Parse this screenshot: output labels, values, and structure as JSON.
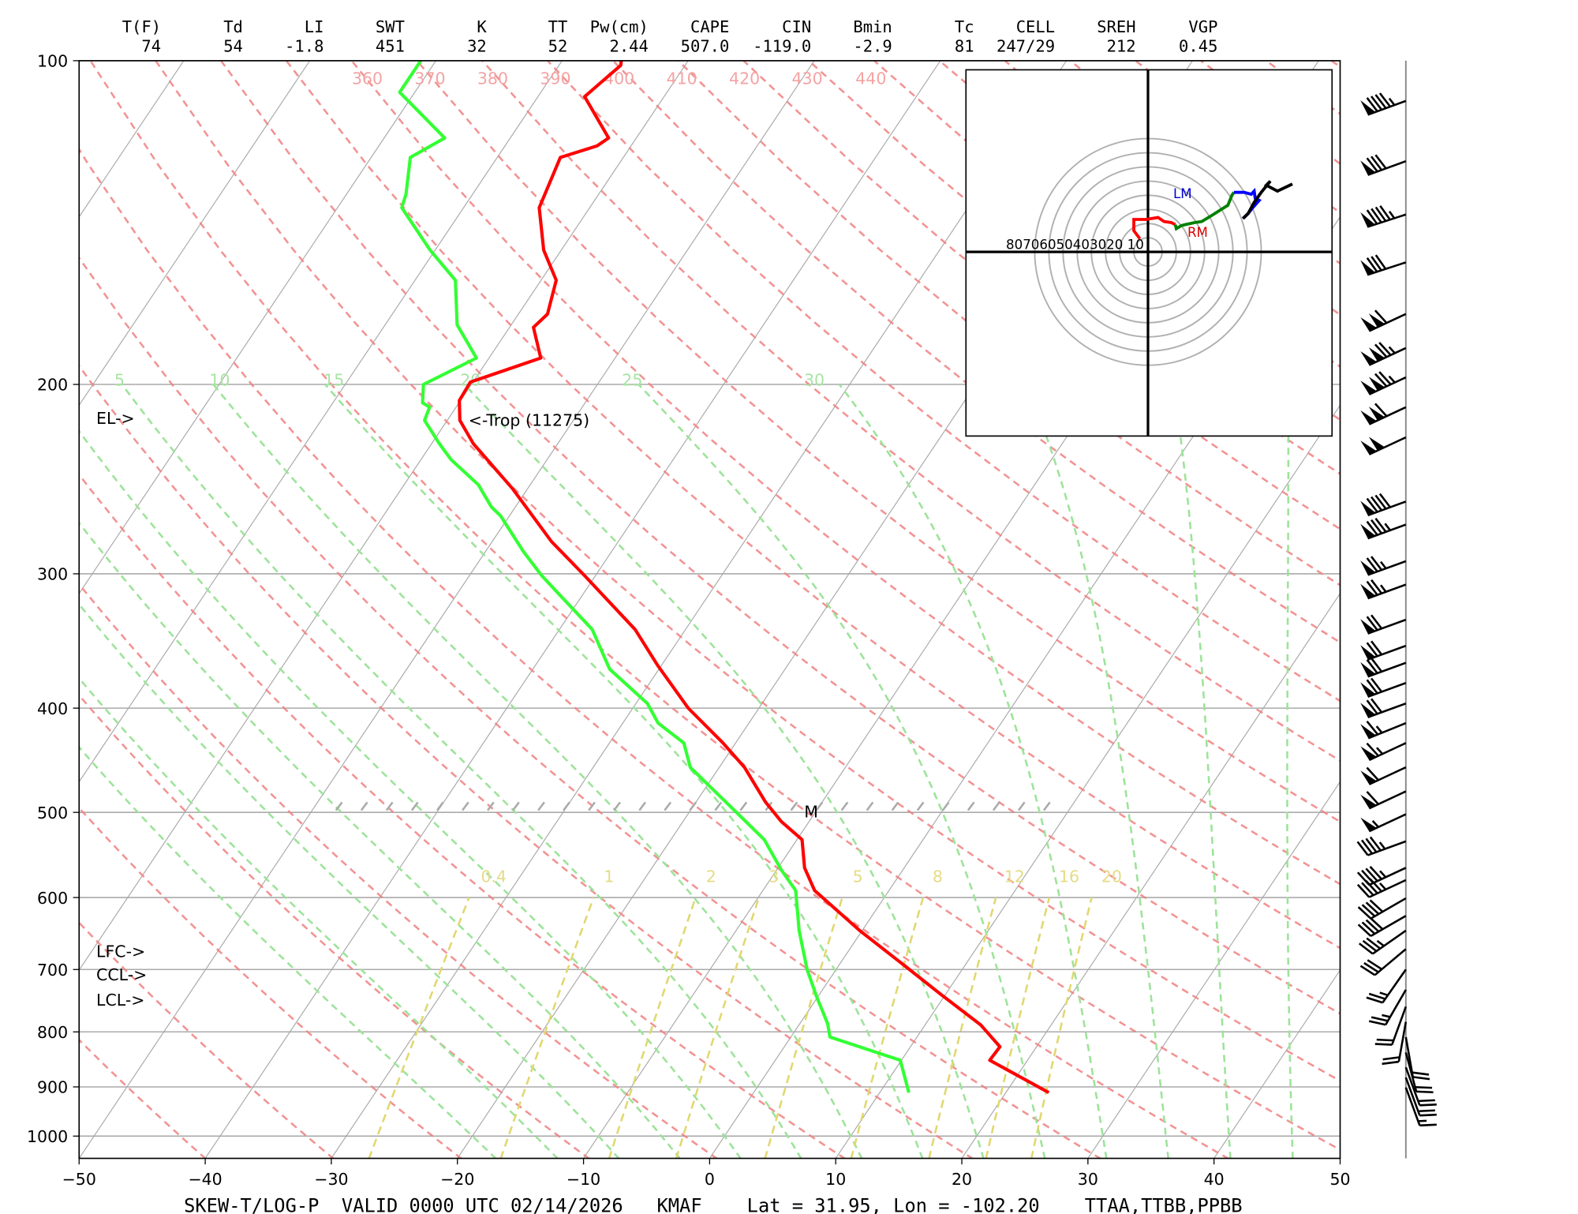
{
  "header": {
    "columns": [
      {
        "label": "T(F)",
        "value": "74"
      },
      {
        "label": "Td",
        "value": "54"
      },
      {
        "label": "LI",
        "value": "-1.8"
      },
      {
        "label": "SWT",
        "value": "451"
      },
      {
        "label": "K",
        "value": "32"
      },
      {
        "label": "TT",
        "value": "52"
      },
      {
        "label": "Pw(cm)",
        "value": "2.44"
      },
      {
        "label": "CAPE",
        "value": "507.0"
      },
      {
        "label": "CIN",
        "value": "-119.0"
      },
      {
        "label": "Bmin",
        "value": "-2.9"
      },
      {
        "label": "Tc",
        "value": "81"
      },
      {
        "label": "CELL",
        "value": "247/29"
      },
      {
        "label": "SREH",
        "value": "212"
      },
      {
        "label": "VGP",
        "value": "0.45"
      }
    ]
  },
  "footer": {
    "title": "SKEW-T/LOG-P  VALID 0000 UTC 02/14/2026   KMAF    Lat = 31.95, Lon = -102.20    TTAA,TTBB,PPBB"
  },
  "annotations": {
    "el": "EL->",
    "trop": "<-Trop (11275)",
    "lfc": "LFC->",
    "ccl": "CCL->",
    "lcl": "LCL->",
    "m": "M"
  },
  "chart_data": {
    "type": "line",
    "subtype": "skew-t log-p",
    "xlabel": "Temperature (C)",
    "ylabel": "Pressure (mb)",
    "xlim": [
      -50,
      50
    ],
    "ylim": [
      1050,
      100
    ],
    "x_ticks": [
      "−50",
      "−40",
      "−30",
      "−20",
      "−10",
      "0",
      "10",
      "20",
      "30",
      "40",
      "50"
    ],
    "x_tick_values": [
      -50,
      -40,
      -30,
      -20,
      -10,
      0,
      10,
      20,
      30,
      40,
      50
    ],
    "y_ticks": [
      "100",
      "200",
      "300",
      "400",
      "500",
      "600",
      "700",
      "800",
      "900",
      "1000"
    ],
    "y_tick_values": [
      100,
      200,
      300,
      400,
      500,
      600,
      700,
      800,
      900,
      1000
    ],
    "dry_adiabat_labels": [
      "360",
      "370",
      "380",
      "390",
      "400",
      "410",
      "420",
      "430",
      "440"
    ],
    "moist_adiabat_labels": [
      "5",
      "10",
      "15",
      "20",
      "25",
      "30"
    ],
    "mixing_ratio_labels": [
      "0.4",
      "1",
      "2",
      "3",
      "5",
      "8",
      "12",
      "16",
      "20"
    ],
    "mixing_ratio_values": [
      0.4,
      1,
      2,
      3,
      5,
      8,
      12,
      16,
      20
    ],
    "colors": {
      "temperature": "#ff0000",
      "dewpoint": "#33ff33",
      "dry_adiabat": "#f08080",
      "moist_adiabat": "#9de39a",
      "mixing_ratio": "#e0d870",
      "isotherm": "#a8a8a8"
    },
    "series": [
      {
        "name": "Temperature",
        "points": [
          [
            911,
            23.4
          ],
          [
            850,
            17.0
          ],
          [
            826,
            17.1
          ],
          [
            788,
            14.4
          ],
          [
            738,
            9.6
          ],
          [
            695,
            5.3
          ],
          [
            644,
            -0.2
          ],
          [
            591,
            -5.9
          ],
          [
            563,
            -7.9
          ],
          [
            530,
            -9.6
          ],
          [
            510,
            -12.2
          ],
          [
            489,
            -14.5
          ],
          [
            454,
            -18.0
          ],
          [
            431,
            -21.0
          ],
          [
            400,
            -25.6
          ],
          [
            365,
            -30.3
          ],
          [
            338,
            -34.0
          ],
          [
            301,
            -40.9
          ],
          [
            280,
            -45.3
          ],
          [
            250,
            -51.2
          ],
          [
            227,
            -56.7
          ],
          [
            216,
            -59.0
          ],
          [
            207,
            -60.1
          ],
          [
            199,
            -60.2
          ],
          [
            189,
            -55.9
          ],
          [
            177,
            -58.1
          ],
          [
            172,
            -57.7
          ],
          [
            160,
            -58.8
          ],
          [
            150,
            -61.4
          ],
          [
            137,
            -64.0
          ],
          [
            123,
            -65.0
          ],
          [
            120,
            -62.7
          ],
          [
            118,
            -62.2
          ],
          [
            108,
            -66.3
          ],
          [
            101,
            -65.1
          ],
          [
            100,
            -65.3
          ]
        ]
      },
      {
        "name": "Dewpoint",
        "points": [
          [
            911,
            12.3
          ],
          [
            850,
            9.9
          ],
          [
            809,
            3.1
          ],
          [
            786,
            2.2
          ],
          [
            742,
            -0.1
          ],
          [
            700,
            -2.3
          ],
          [
            644,
            -5.0
          ],
          [
            591,
            -7.4
          ],
          [
            566,
            -9.6
          ],
          [
            530,
            -12.6
          ],
          [
            502,
            -16.0
          ],
          [
            471,
            -20.0
          ],
          [
            454,
            -22.3
          ],
          [
            431,
            -24.1
          ],
          [
            413,
            -27.2
          ],
          [
            396,
            -29.1
          ],
          [
            368,
            -33.9
          ],
          [
            338,
            -37.4
          ],
          [
            315,
            -41.6
          ],
          [
            301,
            -44.3
          ],
          [
            286,
            -47.0
          ],
          [
            265,
            -50.7
          ],
          [
            260,
            -51.9
          ],
          [
            248,
            -54.1
          ],
          [
            235,
            -57.6
          ],
          [
            227,
            -59.4
          ],
          [
            216,
            -61.8
          ],
          [
            210,
            -62.1
          ],
          [
            208,
            -62.9
          ],
          [
            200,
            -63.8
          ],
          [
            189,
            -61.0
          ],
          [
            176,
            -64.3
          ],
          [
            160,
            -66.8
          ],
          [
            150,
            -70.4
          ],
          [
            137,
            -74.9
          ],
          [
            133,
            -75.3
          ],
          [
            123,
            -76.9
          ],
          [
            118,
            -75.2
          ],
          [
            107,
            -81.2
          ],
          [
            100,
            -81.2
          ]
        ]
      }
    ],
    "wind_barbs": [
      [
        109,
        250,
        95
      ],
      [
        124,
        250,
        80
      ],
      [
        139,
        252,
        95
      ],
      [
        154,
        252,
        80
      ],
      [
        172,
        245,
        110
      ],
      [
        185,
        245,
        125
      ],
      [
        197,
        245,
        125
      ],
      [
        210,
        245,
        110
      ],
      [
        224,
        245,
        100
      ],
      [
        257,
        250,
        90
      ],
      [
        270,
        250,
        85
      ],
      [
        292,
        250,
        75
      ],
      [
        307,
        250,
        75
      ],
      [
        331,
        250,
        70
      ],
      [
        350,
        250,
        70
      ],
      [
        363,
        250,
        70
      ],
      [
        379,
        250,
        70
      ],
      [
        396,
        250,
        70
      ],
      [
        413,
        248,
        65
      ],
      [
        431,
        245,
        65
      ],
      [
        454,
        245,
        60
      ],
      [
        478,
        245,
        60
      ],
      [
        502,
        245,
        55
      ],
      [
        532,
        250,
        45
      ],
      [
        563,
        245,
        45
      ],
      [
        578,
        245,
        45
      ],
      [
        601,
        240,
        40
      ],
      [
        624,
        240,
        40
      ],
      [
        644,
        235,
        35
      ],
      [
        670,
        230,
        30
      ],
      [
        700,
        215,
        25
      ],
      [
        731,
        210,
        25
      ],
      [
        758,
        200,
        20
      ],
      [
        783,
        190,
        20
      ],
      [
        809,
        170,
        20
      ],
      [
        836,
        165,
        20
      ],
      [
        863,
        160,
        20
      ],
      [
        882,
        160,
        20
      ],
      [
        901,
        160,
        15
      ]
    ],
    "hodograph": {
      "ring_labels": "80706050403020 10",
      "rings_kt": [
        10,
        20,
        30,
        40,
        50,
        60,
        70,
        80
      ],
      "lm_label": "LM",
      "rm_label": "RM",
      "segments": [
        {
          "color": "#ff0000",
          "uv": [
            [
              -5.7,
              9.3
            ],
            [
              -10,
              15
            ],
            [
              -10,
              22.9
            ],
            [
              -1.4,
              22.9
            ],
            [
              7.1,
              24.3
            ],
            [
              11.4,
              21.4
            ],
            [
              16.4,
              20.7
            ],
            [
              19.3,
              19.3
            ]
          ]
        },
        {
          "color": "#008000",
          "uv": [
            [
              19.3,
              19.3
            ],
            [
              20,
              16.4
            ],
            [
              23.6,
              18.6
            ],
            [
              26.4,
              19.3
            ],
            [
              32.9,
              20.7
            ],
            [
              37.9,
              21.4
            ],
            [
              45,
              25.7
            ],
            [
              56.4,
              32.9
            ],
            [
              59.3,
              40
            ],
            [
              60.7,
              42.1
            ]
          ]
        },
        {
          "color": "#0000ff",
          "uv": [
            [
              60.7,
              42.1
            ],
            [
              67.9,
              42.1
            ],
            [
              72.9,
              40.7
            ],
            [
              75,
              42.9
            ],
            [
              75.7,
              37.9
            ],
            [
              78.6,
              36.4
            ],
            [
              73.6,
              30.7
            ],
            [
              70.7,
              27.1
            ],
            [
              67.1,
              23.6
            ]
          ]
        },
        {
          "color": "#000000",
          "uv": [
            [
              67.1,
              23.6
            ],
            [
              70.7,
              27.1
            ],
            [
              75,
              35
            ],
            [
              80,
              42.1
            ],
            [
              86.4,
              50
            ],
            [
              83.6,
              47.1
            ],
            [
              91.4,
              42.9
            ],
            [
              102,
              47.9
            ]
          ]
        }
      ]
    }
  }
}
